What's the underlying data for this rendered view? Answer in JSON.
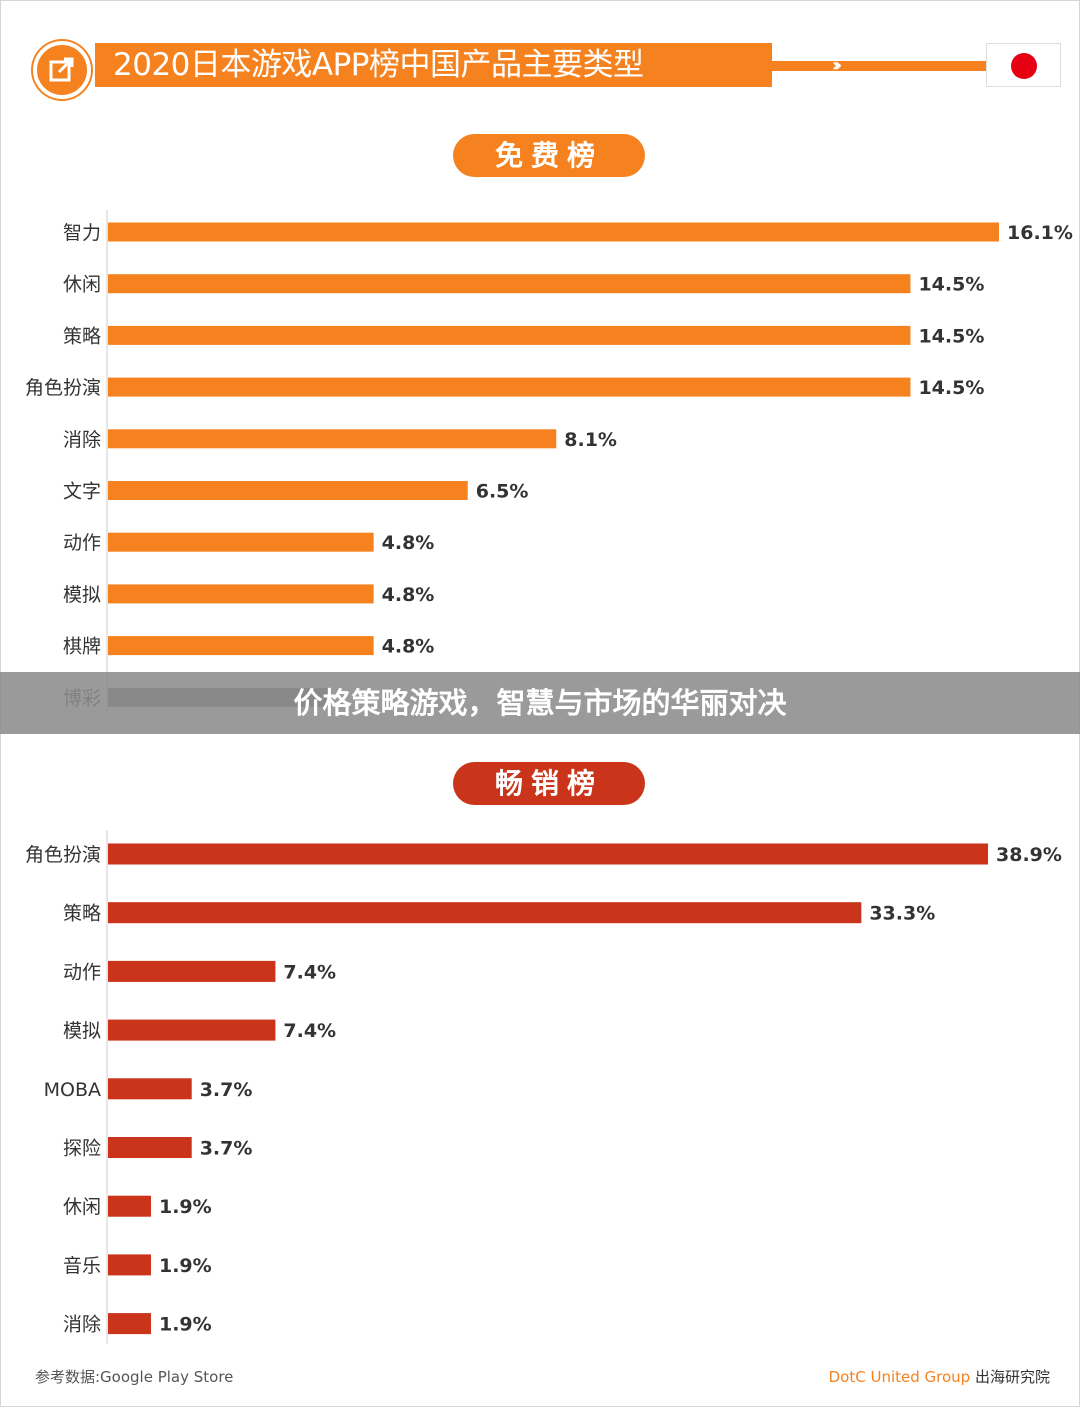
{
  "header": {
    "title": "2020日本游戏APP榜中国产品主要类型",
    "icon": "share-icon",
    "flag": "japan-flag-icon"
  },
  "banner": {
    "text": "价格策略游戏，智慧与市场的华丽对决"
  },
  "footer": {
    "source": "参考数据:Google Play Store",
    "brand": "DotC United Group",
    "institute": "出海研究院"
  },
  "colors": {
    "free": "#f5821f",
    "paid": "#c9341a",
    "muted": "#777777"
  },
  "chart_data": [
    {
      "type": "bar",
      "orientation": "horizontal",
      "title": "免费榜",
      "categories": [
        "智力",
        "休闲",
        "策略",
        "角色扮演",
        "消除",
        "文字",
        "动作",
        "模拟",
        "棋牌",
        "博彩"
      ],
      "values": [
        16.1,
        14.5,
        14.5,
        14.5,
        8.1,
        6.5,
        4.8,
        4.8,
        4.8,
        null
      ],
      "labels": [
        "16.1%",
        "14.5%",
        "14.5%",
        "14.5%",
        "8.1%",
        "6.5%",
        "4.8%",
        "4.8%",
        "4.8%",
        ""
      ],
      "unit": "%",
      "color": "#f5821f"
    },
    {
      "type": "bar",
      "orientation": "horizontal",
      "title": "畅销榜",
      "categories": [
        "角色扮演",
        "策略",
        "动作",
        "模拟",
        "MOBA",
        "探险",
        "休闲",
        "音乐",
        "消除"
      ],
      "values": [
        38.9,
        33.3,
        7.4,
        7.4,
        3.7,
        3.7,
        1.9,
        1.9,
        1.9
      ],
      "labels": [
        "38.9%",
        "33.3%",
        "7.4%",
        "7.4%",
        "3.7%",
        "3.7%",
        "1.9%",
        "1.9%",
        "1.9%"
      ],
      "unit": "%",
      "color": "#c9341a"
    }
  ]
}
